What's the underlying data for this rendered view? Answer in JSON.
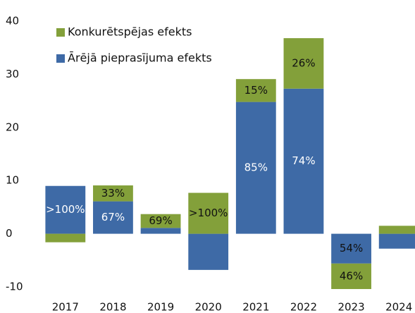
{
  "chart_data": {
    "type": "stacked_bar",
    "categories": [
      "2017",
      "2018",
      "2019",
      "2020",
      "2021",
      "2022",
      "2023",
      "2024"
    ],
    "series": [
      {
        "name": "Ārējā pieprasījuma efekts",
        "color": "#3e6aa6",
        "values": [
          9.0,
          6.1,
          1.1,
          -6.8,
          24.8,
          27.3,
          -5.6,
          -2.8
        ],
        "value_labels": [
          ">100%",
          "67%",
          null,
          null,
          "85%",
          "74%",
          "54%",
          null
        ]
      },
      {
        "name": "Konkurētspējas efekts",
        "color": "#83a03a",
        "values": [
          -1.6,
          3.0,
          2.6,
          7.7,
          4.3,
          9.5,
          -4.8,
          1.5
        ],
        "value_labels": [
          null,
          "33%",
          "69%",
          ">100%",
          "15%",
          "26%",
          "46%",
          null
        ]
      }
    ],
    "ylim": [
      -10,
      40
    ],
    "yticks": [
      -10,
      0,
      10,
      20,
      30,
      40
    ],
    "legend": "top-left",
    "grid": false
  }
}
